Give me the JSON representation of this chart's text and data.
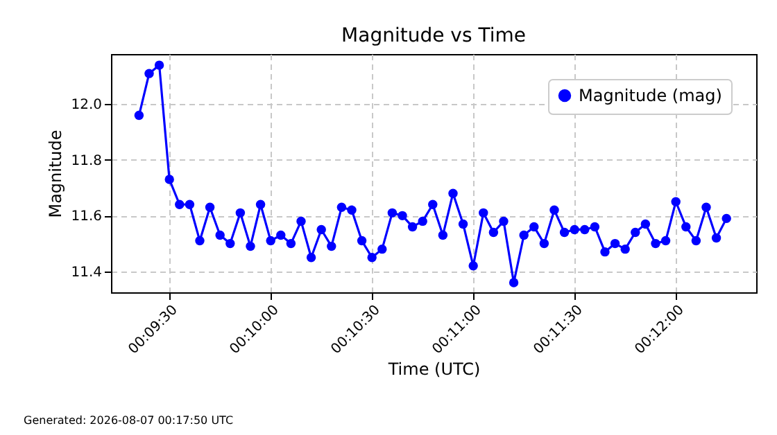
{
  "chart_data": {
    "type": "line",
    "title": "Magnitude vs Time",
    "xlabel": "Time (UTC)",
    "ylabel": "Magnitude",
    "annotations": [
      "Generated: 2026-08-07 00:17:50 UTC"
    ],
    "x": [
      "2026-08-07T00:09:21",
      "2026-08-07T00:09:24",
      "2026-08-07T00:09:27",
      "2026-08-07T00:09:30",
      "2026-08-07T00:09:33",
      "2026-08-07T00:09:36",
      "2026-08-07T00:09:39",
      "2026-08-07T00:09:42",
      "2026-08-07T00:09:45",
      "2026-08-07T00:09:48",
      "2026-08-07T00:09:51",
      "2026-08-07T00:09:54",
      "2026-08-07T00:09:57",
      "2026-08-07T00:10:00",
      "2026-08-07T00:10:03",
      "2026-08-07T00:10:06",
      "2026-08-07T00:10:09",
      "2026-08-07T00:10:12",
      "2026-08-07T00:10:15",
      "2026-08-07T00:10:18",
      "2026-08-07T00:10:21",
      "2026-08-07T00:10:24",
      "2026-08-07T00:10:27",
      "2026-08-07T00:10:30",
      "2026-08-07T00:10:33",
      "2026-08-07T00:10:36",
      "2026-08-07T00:10:39",
      "2026-08-07T00:10:42",
      "2026-08-07T00:10:45",
      "2026-08-07T00:10:48",
      "2026-08-07T00:10:51",
      "2026-08-07T00:10:54",
      "2026-08-07T00:10:57",
      "2026-08-07T00:11:00",
      "2026-08-07T00:11:03",
      "2026-08-07T00:11:06",
      "2026-08-07T00:11:09",
      "2026-08-07T00:11:12",
      "2026-08-07T00:11:15",
      "2026-08-07T00:11:18",
      "2026-08-07T00:11:21",
      "2026-08-07T00:11:24",
      "2026-08-07T00:11:27",
      "2026-08-07T00:11:30",
      "2026-08-07T00:11:33",
      "2026-08-07T00:11:36",
      "2026-08-07T00:11:39",
      "2026-08-07T00:11:42",
      "2026-08-07T00:11:45",
      "2026-08-07T00:11:48",
      "2026-08-07T00:11:51",
      "2026-08-07T00:11:54",
      "2026-08-07T00:11:57",
      "2026-08-07T00:12:00",
      "2026-08-07T00:12:03",
      "2026-08-07T00:12:06",
      "2026-08-07T00:12:09",
      "2026-08-07T00:12:12",
      "2026-08-07T00:12:15"
    ],
    "series": [
      {
        "name": "Magnitude (mag)",
        "color": "#0000ff",
        "values": [
          11.96,
          12.11,
          12.14,
          11.73,
          11.64,
          11.64,
          11.51,
          11.63,
          11.53,
          11.5,
          11.61,
          11.49,
          11.64,
          11.51,
          11.53,
          11.5,
          11.58,
          11.45,
          11.55,
          11.49,
          11.63,
          11.62,
          11.51,
          11.45,
          11.48,
          11.61,
          11.6,
          11.56,
          11.58,
          11.64,
          11.53,
          11.68,
          11.57,
          11.42,
          11.61,
          11.54,
          11.58,
          11.36,
          11.53,
          11.56,
          11.5,
          11.62,
          11.54,
          11.55,
          11.55,
          11.56,
          11.47,
          11.5,
          11.48,
          11.54,
          11.57,
          11.5,
          11.51,
          11.65,
          11.56,
          11.51,
          11.63,
          11.52,
          11.59
        ]
      }
    ],
    "xlim": [
      "2026-08-07T00:09:12.7",
      "2026-08-07T00:12:23.8"
    ],
    "xticks": [
      {
        "value": "2026-08-07T00:09:30",
        "label": "00:09:30"
      },
      {
        "value": "2026-08-07T00:10:00",
        "label": "00:10:00"
      },
      {
        "value": "2026-08-07T00:10:30",
        "label": "00:10:30"
      },
      {
        "value": "2026-08-07T00:11:00",
        "label": "00:11:00"
      },
      {
        "value": "2026-08-07T00:11:30",
        "label": "00:11:30"
      },
      {
        "value": "2026-08-07T00:12:00",
        "label": "00:12:00"
      }
    ],
    "ylim": [
      11.325,
      12.18
    ],
    "yticks": [
      11.4,
      11.6,
      11.8,
      {
        "value": 12.0,
        "label": "12.0"
      }
    ],
    "grid": true,
    "legend": "top right",
    "marker": "circle",
    "line_style": "solid"
  }
}
